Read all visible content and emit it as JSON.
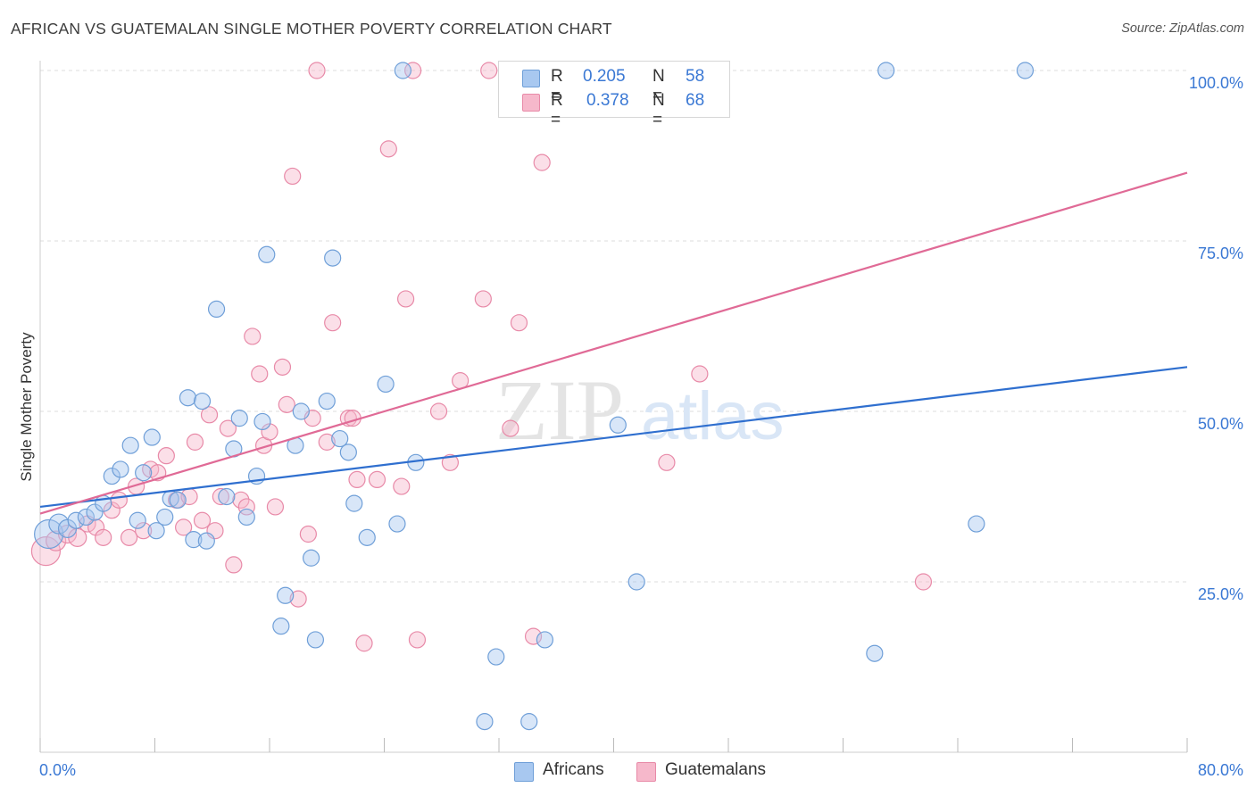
{
  "title": "AFRICAN VS GUATEMALAN SINGLE MOTHER POVERTY CORRELATION CHART",
  "source": "Source: ZipAtlas.com",
  "watermark": {
    "zip": "ZIP",
    "atlas": "atlas"
  },
  "legend": {
    "rows": [
      {
        "r_label": "R =",
        "r_value": "0.205",
        "n_label": "N =",
        "n_value": "58"
      },
      {
        "r_label": "R =",
        "r_value": "0.378",
        "n_label": "N =",
        "n_value": "68"
      }
    ]
  },
  "bottom_legend": [
    "Africans",
    "Guatemalans"
  ],
  "colors": {
    "africans_fill": "#a8c8f0",
    "africans_stroke": "#6f9fd8",
    "africans_line": "#2f6fcf",
    "guatemalans_fill": "#f6b8cb",
    "guatemalans_stroke": "#e88aa8",
    "guatemalans_line": "#e06a96",
    "tick_label": "#3a78d4",
    "grid": "#dddddd"
  },
  "chart_data": {
    "type": "scatter",
    "title": "AFRICAN VS GUATEMALAN SINGLE MOTHER POVERTY CORRELATION CHART",
    "xlabel": "",
    "ylabel": "Single Mother Poverty",
    "xlim": [
      0,
      80
    ],
    "ylim": [
      0,
      105
    ],
    "x_tick_labels": [
      "0.0%",
      "80.0%"
    ],
    "y_ticks": [
      25,
      50,
      75,
      100
    ],
    "y_tick_labels": [
      "25.0%",
      "50.0%",
      "75.0%",
      "100.0%"
    ],
    "grid": true,
    "legend_position": "top-center",
    "series": [
      {
        "name": "Africans",
        "r": 0.205,
        "n": 58,
        "trend": {
          "x": [
            0,
            80
          ],
          "y": [
            36.0,
            56.5
          ]
        },
        "points": [
          [
            0.6,
            32.0,
            16
          ],
          [
            1.3,
            33.5,
            11
          ],
          [
            1.9,
            32.8,
            10
          ],
          [
            2.5,
            34.0,
            9
          ],
          [
            3.2,
            34.5,
            9
          ],
          [
            3.8,
            35.2,
            9
          ],
          [
            4.4,
            36.5,
            9
          ],
          [
            5.0,
            40.5,
            9
          ],
          [
            5.6,
            41.5,
            9
          ],
          [
            6.3,
            45.0,
            9
          ],
          [
            6.8,
            34.0,
            9
          ],
          [
            7.2,
            41.0,
            9
          ],
          [
            7.8,
            46.2,
            9
          ],
          [
            8.1,
            32.5,
            9
          ],
          [
            8.7,
            34.5,
            9
          ],
          [
            9.1,
            37.2,
            9
          ],
          [
            9.6,
            37.0,
            9
          ],
          [
            10.3,
            52.0,
            9
          ],
          [
            10.7,
            31.2,
            9
          ],
          [
            11.3,
            51.5,
            9
          ],
          [
            11.6,
            31.0,
            9
          ],
          [
            12.3,
            65.0,
            9
          ],
          [
            13.0,
            37.5,
            9
          ],
          [
            13.5,
            44.5,
            9
          ],
          [
            13.9,
            49.0,
            9
          ],
          [
            14.4,
            34.5,
            9
          ],
          [
            15.1,
            40.5,
            9
          ],
          [
            15.5,
            48.5,
            9
          ],
          [
            15.8,
            73.0,
            9
          ],
          [
            16.8,
            18.5,
            9
          ],
          [
            17.1,
            23.0,
            9
          ],
          [
            17.8,
            45.0,
            9
          ],
          [
            18.2,
            50.0,
            9
          ],
          [
            18.9,
            28.5,
            9
          ],
          [
            19.2,
            16.5,
            9
          ],
          [
            20.0,
            51.5,
            9
          ],
          [
            20.4,
            72.5,
            9
          ],
          [
            20.9,
            46.0,
            9
          ],
          [
            21.5,
            44.0,
            9
          ],
          [
            21.9,
            36.5,
            9
          ],
          [
            22.8,
            31.5,
            9
          ],
          [
            24.1,
            54.0,
            9
          ],
          [
            24.9,
            33.5,
            9
          ],
          [
            25.3,
            100.0,
            9
          ],
          [
            26.2,
            42.5,
            9
          ],
          [
            31.0,
            4.5,
            9
          ],
          [
            31.8,
            14.0,
            9
          ],
          [
            34.1,
            4.5,
            9
          ],
          [
            35.2,
            16.5,
            9
          ],
          [
            40.3,
            48.0,
            9
          ],
          [
            41.6,
            25.0,
            9
          ],
          [
            58.2,
            14.5,
            9
          ],
          [
            59.0,
            100.0,
            9
          ],
          [
            65.3,
            33.5,
            9
          ],
          [
            68.7,
            100.0,
            9
          ]
        ]
      },
      {
        "name": "Guatemalans",
        "r": 0.378,
        "n": 68,
        "trend": {
          "x": [
            0,
            80
          ],
          "y": [
            35.0,
            85.0
          ]
        },
        "points": [
          [
            0.4,
            29.5,
            16
          ],
          [
            1.1,
            31.0,
            11
          ],
          [
            1.9,
            32.0,
            10
          ],
          [
            2.6,
            31.5,
            10
          ],
          [
            3.3,
            33.5,
            9
          ],
          [
            3.9,
            33.0,
            9
          ],
          [
            4.4,
            31.5,
            9
          ],
          [
            5.0,
            35.5,
            9
          ],
          [
            5.5,
            37.0,
            9
          ],
          [
            6.2,
            31.5,
            9
          ],
          [
            6.7,
            39.0,
            9
          ],
          [
            7.2,
            32.5,
            9
          ],
          [
            7.7,
            41.5,
            9
          ],
          [
            8.2,
            41.0,
            9
          ],
          [
            8.8,
            43.5,
            9
          ],
          [
            9.5,
            37.0,
            9
          ],
          [
            10.0,
            33.0,
            9
          ],
          [
            10.4,
            37.5,
            9
          ],
          [
            10.8,
            45.5,
            9
          ],
          [
            11.3,
            34.0,
            9
          ],
          [
            11.8,
            49.5,
            9
          ],
          [
            12.2,
            32.5,
            9
          ],
          [
            12.6,
            37.5,
            9
          ],
          [
            13.1,
            47.5,
            9
          ],
          [
            13.5,
            27.5,
            9
          ],
          [
            14.0,
            37.0,
            9
          ],
          [
            14.4,
            36.0,
            9
          ],
          [
            14.8,
            61.0,
            9
          ],
          [
            15.3,
            55.5,
            9
          ],
          [
            15.6,
            45.0,
            9
          ],
          [
            16.0,
            47.0,
            9
          ],
          [
            16.4,
            36.0,
            9
          ],
          [
            16.9,
            56.5,
            9
          ],
          [
            17.2,
            51.0,
            9
          ],
          [
            17.6,
            84.5,
            9
          ],
          [
            18.0,
            22.5,
            9
          ],
          [
            18.7,
            32.0,
            9
          ],
          [
            19.0,
            49.0,
            9
          ],
          [
            19.3,
            100.0,
            9
          ],
          [
            20.0,
            45.5,
            9
          ],
          [
            20.4,
            63.0,
            9
          ],
          [
            21.5,
            49.0,
            9
          ],
          [
            21.8,
            49.0,
            9
          ],
          [
            22.1,
            40.0,
            9
          ],
          [
            22.6,
            16.0,
            9
          ],
          [
            23.5,
            40.0,
            9
          ],
          [
            24.3,
            88.5,
            9
          ],
          [
            25.2,
            39.0,
            9
          ],
          [
            25.5,
            66.5,
            9
          ],
          [
            26.0,
            100.0,
            9
          ],
          [
            26.3,
            16.5,
            9
          ],
          [
            27.8,
            50.0,
            9
          ],
          [
            28.6,
            42.5,
            9
          ],
          [
            29.3,
            54.5,
            9
          ],
          [
            30.9,
            66.5,
            9
          ],
          [
            31.3,
            100.0,
            9
          ],
          [
            32.8,
            47.5,
            9
          ],
          [
            33.4,
            63.0,
            9
          ],
          [
            34.4,
            17.0,
            9
          ],
          [
            35.0,
            86.5,
            9
          ],
          [
            43.7,
            42.5,
            9
          ],
          [
            46.0,
            55.5,
            9
          ],
          [
            61.6,
            25.0,
            9
          ]
        ]
      }
    ]
  }
}
